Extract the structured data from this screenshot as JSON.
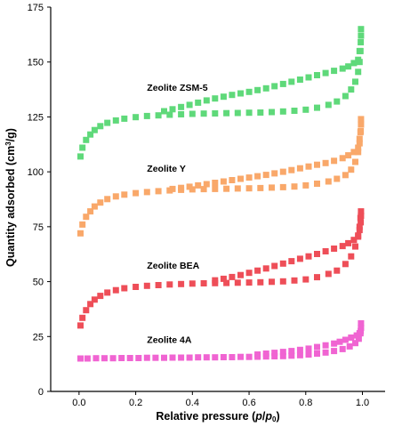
{
  "chart_data": {
    "type": "scatter",
    "xlabel_parts": [
      "Relative pressure (",
      "p",
      "/",
      "p",
      "0",
      ")"
    ],
    "ylabel_parts": [
      "Quantity adsorbed (cm",
      "3",
      "/g)"
    ],
    "xlim": [
      -0.1,
      1.08
    ],
    "ylim": [
      0,
      175
    ],
    "xticks": [
      "0.0",
      "0.2",
      "0.4",
      "0.6",
      "0.8",
      "1.0"
    ],
    "yticks": [
      "0",
      "25",
      "50",
      "75",
      "100",
      "125",
      "150",
      "175"
    ],
    "grid": false,
    "series": [
      {
        "name": "Zeolite ZSM-5",
        "color": "#5fd97a",
        "adsorption": [
          [
            0.005,
            107
          ],
          [
            0.012,
            111
          ],
          [
            0.025,
            114.5
          ],
          [
            0.04,
            117
          ],
          [
            0.055,
            119
          ],
          [
            0.075,
            120.8
          ],
          [
            0.1,
            122.3
          ],
          [
            0.13,
            123.4
          ],
          [
            0.16,
            124.2
          ],
          [
            0.2,
            124.9
          ],
          [
            0.24,
            125.4
          ],
          [
            0.28,
            125.7
          ],
          [
            0.32,
            126
          ],
          [
            0.36,
            126.2
          ],
          [
            0.4,
            126.4
          ],
          [
            0.44,
            126.5
          ],
          [
            0.48,
            126.6
          ],
          [
            0.52,
            126.7
          ],
          [
            0.56,
            126.8
          ],
          [
            0.6,
            126.9
          ],
          [
            0.64,
            127
          ],
          [
            0.68,
            127.2
          ],
          [
            0.72,
            127.5
          ],
          [
            0.76,
            127.8
          ],
          [
            0.8,
            128.3
          ],
          [
            0.84,
            129.2
          ],
          [
            0.88,
            130.5
          ],
          [
            0.91,
            132
          ],
          [
            0.94,
            134.5
          ],
          [
            0.96,
            137.5
          ],
          [
            0.975,
            141
          ],
          [
            0.985,
            145.5
          ],
          [
            0.99,
            150
          ],
          [
            0.993,
            155
          ]
        ],
        "desorption": [
          [
            0.995,
            165
          ],
          [
            0.995,
            162
          ],
          [
            0.994,
            159
          ],
          [
            0.99,
            155
          ],
          [
            0.985,
            151
          ],
          [
            0.97,
            149.5
          ],
          [
            0.95,
            148
          ],
          [
            0.93,
            147
          ],
          [
            0.9,
            146
          ],
          [
            0.87,
            145
          ],
          [
            0.84,
            144
          ],
          [
            0.81,
            143
          ],
          [
            0.78,
            142
          ],
          [
            0.75,
            141
          ],
          [
            0.72,
            140
          ],
          [
            0.69,
            139
          ],
          [
            0.66,
            138
          ],
          [
            0.63,
            137.2
          ],
          [
            0.6,
            136.4
          ],
          [
            0.57,
            135.7
          ],
          [
            0.54,
            135
          ],
          [
            0.51,
            134.2
          ],
          [
            0.48,
            133.4
          ],
          [
            0.45,
            132.5
          ],
          [
            0.42,
            131.5
          ],
          [
            0.39,
            130.5
          ],
          [
            0.36,
            129.5
          ],
          [
            0.33,
            128.5
          ],
          [
            0.3,
            127.6
          ]
        ],
        "label_pos": [
          0.24,
          137
        ]
      },
      {
        "name": "Zeolite Y",
        "color": "#f9a86a",
        "adsorption": [
          [
            0.005,
            72
          ],
          [
            0.012,
            76
          ],
          [
            0.025,
            79.5
          ],
          [
            0.04,
            82
          ],
          [
            0.055,
            84.2
          ],
          [
            0.075,
            86
          ],
          [
            0.1,
            87.6
          ],
          [
            0.13,
            88.8
          ],
          [
            0.16,
            89.6
          ],
          [
            0.2,
            90.3
          ],
          [
            0.24,
            90.8
          ],
          [
            0.28,
            91.2
          ],
          [
            0.32,
            91.5
          ],
          [
            0.36,
            91.8
          ],
          [
            0.4,
            92
          ],
          [
            0.44,
            92.1
          ],
          [
            0.48,
            92.2
          ],
          [
            0.52,
            92.3
          ],
          [
            0.56,
            92.4
          ],
          [
            0.6,
            92.5
          ],
          [
            0.64,
            92.6
          ],
          [
            0.68,
            92.8
          ],
          [
            0.72,
            93
          ],
          [
            0.76,
            93.3
          ],
          [
            0.8,
            93.8
          ],
          [
            0.84,
            94.6
          ],
          [
            0.88,
            95.6
          ],
          [
            0.91,
            96.8
          ],
          [
            0.94,
            98.5
          ],
          [
            0.96,
            101
          ],
          [
            0.975,
            104.5
          ],
          [
            0.985,
            109
          ],
          [
            0.99,
            113
          ],
          [
            0.993,
            118
          ]
        ],
        "desorption": [
          [
            0.995,
            124
          ],
          [
            0.995,
            121.5
          ],
          [
            0.994,
            118.5
          ],
          [
            0.99,
            115
          ],
          [
            0.985,
            111
          ],
          [
            0.97,
            109
          ],
          [
            0.95,
            107.5
          ],
          [
            0.93,
            106.2
          ],
          [
            0.9,
            105
          ],
          [
            0.87,
            104
          ],
          [
            0.84,
            103.2
          ],
          [
            0.81,
            102.4
          ],
          [
            0.78,
            101.6
          ],
          [
            0.75,
            100.8
          ],
          [
            0.72,
            100
          ],
          [
            0.69,
            99.3
          ],
          [
            0.66,
            98.6
          ],
          [
            0.63,
            98
          ],
          [
            0.6,
            97.4
          ],
          [
            0.57,
            96.8
          ],
          [
            0.54,
            96.2
          ],
          [
            0.51,
            95.6
          ],
          [
            0.48,
            95
          ],
          [
            0.45,
            94.4
          ],
          [
            0.42,
            93.8
          ],
          [
            0.39,
            93.2
          ],
          [
            0.36,
            92.7
          ],
          [
            0.33,
            92.2
          ]
        ],
        "label_pos": [
          0.24,
          100
        ]
      },
      {
        "name": "Zeolite BEA",
        "color": "#ee4e58",
        "adsorption": [
          [
            0.005,
            30
          ],
          [
            0.012,
            33.5
          ],
          [
            0.025,
            37
          ],
          [
            0.04,
            39.8
          ],
          [
            0.055,
            41.8
          ],
          [
            0.075,
            43.5
          ],
          [
            0.1,
            45
          ],
          [
            0.13,
            46.1
          ],
          [
            0.16,
            47
          ],
          [
            0.2,
            47.6
          ],
          [
            0.24,
            48.1
          ],
          [
            0.28,
            48.4
          ],
          [
            0.32,
            48.7
          ],
          [
            0.36,
            48.9
          ],
          [
            0.4,
            49.1
          ],
          [
            0.44,
            49.2
          ],
          [
            0.48,
            49.3
          ],
          [
            0.52,
            49.4
          ],
          [
            0.56,
            49.5
          ],
          [
            0.6,
            49.6
          ],
          [
            0.64,
            49.7
          ],
          [
            0.68,
            49.9
          ],
          [
            0.72,
            50.1
          ],
          [
            0.76,
            50.5
          ],
          [
            0.8,
            51
          ],
          [
            0.84,
            52
          ],
          [
            0.88,
            53.5
          ],
          [
            0.91,
            55
          ],
          [
            0.94,
            58
          ],
          [
            0.96,
            61.5
          ],
          [
            0.975,
            66
          ],
          [
            0.985,
            70.5
          ],
          [
            0.99,
            75
          ],
          [
            0.993,
            79
          ]
        ],
        "desorption": [
          [
            0.995,
            82
          ],
          [
            0.995,
            80
          ],
          [
            0.994,
            77
          ],
          [
            0.99,
            73.5
          ],
          [
            0.985,
            71
          ],
          [
            0.97,
            69
          ],
          [
            0.95,
            67.5
          ],
          [
            0.93,
            66.2
          ],
          [
            0.9,
            65
          ],
          [
            0.87,
            63.8
          ],
          [
            0.84,
            62.6
          ],
          [
            0.81,
            61.5
          ],
          [
            0.78,
            60.4
          ],
          [
            0.75,
            59.3
          ],
          [
            0.72,
            58.2
          ],
          [
            0.69,
            57.1
          ],
          [
            0.66,
            56
          ],
          [
            0.63,
            55
          ],
          [
            0.6,
            54
          ],
          [
            0.57,
            53
          ],
          [
            0.54,
            52.1
          ],
          [
            0.51,
            51.3
          ],
          [
            0.48,
            50.6
          ]
        ],
        "label_pos": [
          0.24,
          56
        ]
      },
      {
        "name": "Zeolite 4A",
        "color": "#f064d2",
        "adsorption": [
          [
            0.005,
            15
          ],
          [
            0.03,
            15
          ],
          [
            0.06,
            15.1
          ],
          [
            0.09,
            15.1
          ],
          [
            0.12,
            15.1
          ],
          [
            0.15,
            15.2
          ],
          [
            0.18,
            15.2
          ],
          [
            0.21,
            15.2
          ],
          [
            0.24,
            15.3
          ],
          [
            0.27,
            15.3
          ],
          [
            0.3,
            15.3
          ],
          [
            0.33,
            15.4
          ],
          [
            0.36,
            15.4
          ],
          [
            0.39,
            15.4
          ],
          [
            0.42,
            15.5
          ],
          [
            0.45,
            15.5
          ],
          [
            0.48,
            15.5
          ],
          [
            0.51,
            15.6
          ],
          [
            0.54,
            15.6
          ],
          [
            0.57,
            15.7
          ],
          [
            0.6,
            15.7
          ],
          [
            0.63,
            15.8
          ],
          [
            0.66,
            15.9
          ],
          [
            0.69,
            16
          ],
          [
            0.72,
            16.1
          ],
          [
            0.75,
            16.3
          ],
          [
            0.78,
            16.5
          ],
          [
            0.81,
            16.8
          ],
          [
            0.84,
            17.2
          ],
          [
            0.87,
            17.7
          ],
          [
            0.9,
            18.4
          ],
          [
            0.93,
            19.3
          ],
          [
            0.955,
            20.5
          ],
          [
            0.975,
            22
          ],
          [
            0.987,
            24
          ],
          [
            0.993,
            26.5
          ]
        ],
        "desorption": [
          [
            0.995,
            31
          ],
          [
            0.995,
            29
          ],
          [
            0.994,
            27.5
          ],
          [
            0.99,
            26.5
          ],
          [
            0.98,
            25.5
          ],
          [
            0.96,
            24.5
          ],
          [
            0.94,
            23.5
          ],
          [
            0.92,
            22.6
          ],
          [
            0.9,
            21.8
          ],
          [
            0.87,
            21
          ],
          [
            0.84,
            20.2
          ],
          [
            0.81,
            19.5
          ],
          [
            0.78,
            18.9
          ],
          [
            0.75,
            18.4
          ],
          [
            0.72,
            18
          ],
          [
            0.69,
            17.6
          ],
          [
            0.66,
            17.2
          ],
          [
            0.63,
            16.8
          ]
        ],
        "label_pos": [
          0.24,
          22
        ]
      }
    ]
  }
}
